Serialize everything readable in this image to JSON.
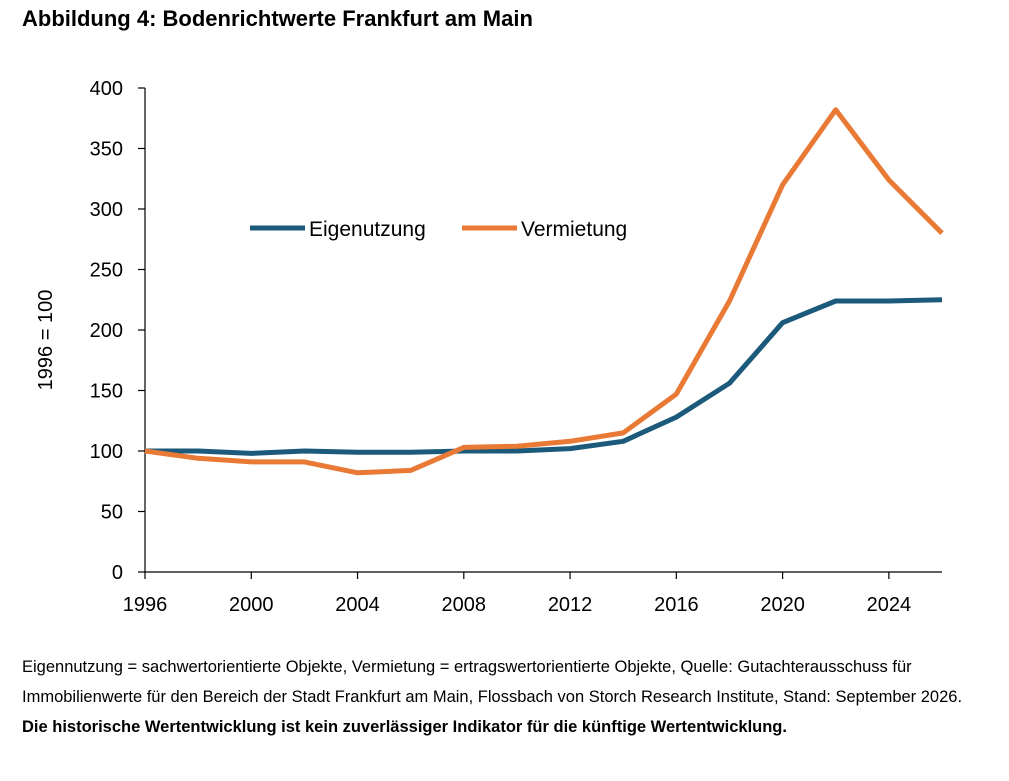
{
  "title": "Abbildung 4: Bodenrichtwerte Frankfurt am Main",
  "note": {
    "text": "Eigennutzung = sachwertorientierte Objekte, Vermietung = ertragswertorientierte Objekte, Quelle: Gutachterausschuss für Immobilienwerte für den Bereich der Stadt Frankfurt am Main, Flossbach von Storch Research Institute, Stand: September 2026. ",
    "bold": "Die historische Wertentwicklung ist kein zuverlässiger Indikator für die künftige Wertentwicklung."
  },
  "chart_data": {
    "type": "line",
    "title": "",
    "xlabel": "",
    "ylabel": "1996 = 100",
    "xlim": [
      1996,
      2026
    ],
    "ylim": [
      0,
      400
    ],
    "xticks": [
      1996,
      2000,
      2004,
      2008,
      2012,
      2016,
      2020,
      2024
    ],
    "yticks": [
      0,
      50,
      100,
      150,
      200,
      250,
      300,
      350,
      400
    ],
    "grid": false,
    "legend_position": "top-center",
    "x": [
      1996,
      1998,
      2000,
      2002,
      2004,
      2006,
      2008,
      2010,
      2012,
      2014,
      2016,
      2018,
      2020,
      2022,
      2024,
      2026
    ],
    "series": [
      {
        "name": "Eigenutzung",
        "color": "#1b5a7a",
        "values": [
          100,
          100,
          98,
          100,
          99,
          99,
          100,
          100,
          102,
          108,
          128,
          156,
          206,
          224,
          224,
          225
        ]
      },
      {
        "name": "Vermietung",
        "color": "#e87a35",
        "values": [
          100,
          94,
          91,
          91,
          82,
          84,
          103,
          104,
          108,
          115,
          147,
          224,
          320,
          382,
          324,
          280
        ]
      }
    ]
  }
}
